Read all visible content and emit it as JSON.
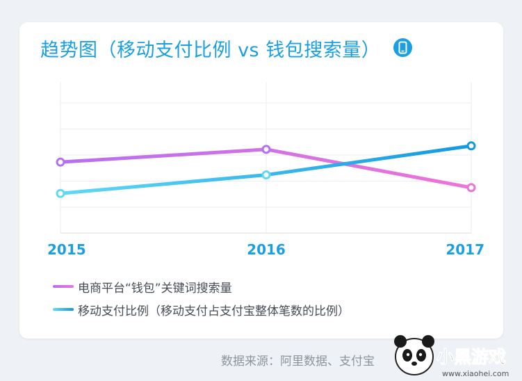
{
  "title": "趋势图（移动支付比例 vs 钱包搜索量）",
  "title_icon": "phone-icon",
  "chart_data": {
    "type": "line",
    "x": [
      "2015",
      "2016",
      "2017"
    ],
    "series": [
      {
        "name": "电商平台“钱包”关键词搜索量",
        "values": [
          0.61,
          0.72,
          0.39
        ],
        "color_start": "#b66ff0",
        "color_end": "#ee73d8"
      },
      {
        "name": "移动支付比例（移动支付占支付宝整体笔数的比例）",
        "values": [
          0.34,
          0.5,
          0.75
        ],
        "color_start": "#5fd9f5",
        "color_end": "#1498e0"
      }
    ],
    "ylim": [
      0,
      1.3
    ],
    "grid": true,
    "xlabel": "",
    "ylabel": "",
    "legend_position": "bottom-left",
    "tick_color": "#1a9fe0"
  },
  "source_text": "数据来源：阿里数据、支付宝",
  "watermark": {
    "brand": "小黑游戏",
    "url": "www.xiaohei.com"
  }
}
